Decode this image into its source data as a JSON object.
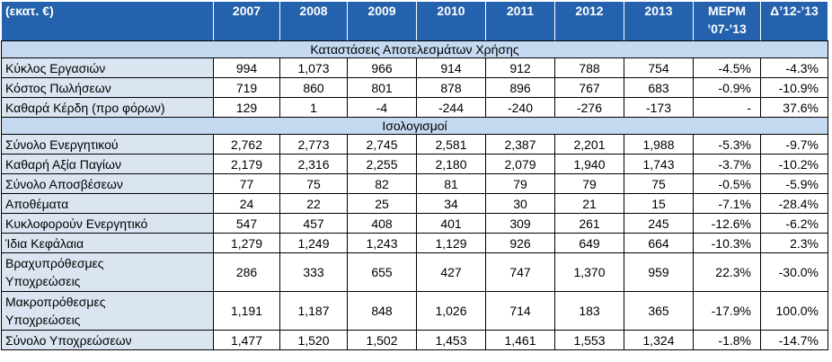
{
  "table": {
    "header": [
      "(εκατ. €)",
      "2007",
      "2008",
      "2009",
      "2010",
      "2011",
      "2012",
      "2013",
      "ΜΕΡΜ ’07-’13",
      "Δ’12-’13"
    ],
    "sections": [
      {
        "title": "Καταστάσεις Αποτελεσμάτων Χρήσης",
        "rows": [
          [
            "Κύκλος Εργασιών",
            "994",
            "1,073",
            "966",
            "914",
            "912",
            "788",
            "754",
            "-4.5%",
            "-4.3%"
          ],
          [
            "Κόστος Πωλήσεων",
            "719",
            "860",
            "801",
            "878",
            "896",
            "767",
            "683",
            "-0.9%",
            "-10.9%"
          ],
          [
            "Καθαρά Κέρδη (προ φόρων)",
            "129",
            "1",
            "-4",
            "-244",
            "-240",
            "-276",
            "-173",
            "-",
            "37.6%"
          ]
        ]
      },
      {
        "title": "Ισολογισμοί",
        "rows": [
          [
            "Σύνολο Ενεργητικού",
            "2,762",
            "2,773",
            "2,745",
            "2,581",
            "2,387",
            "2,201",
            "1,988",
            "-5.3%",
            "-9.7%"
          ],
          [
            "Καθαρή Αξία  Παγίων",
            "2,179",
            "2,316",
            "2,255",
            "2,180",
            "2,079",
            "1,940",
            "1,743",
            "-3.7%",
            "-10.2%"
          ],
          [
            "Σύνολο Αποσβέσεων",
            "77",
            "75",
            "82",
            "81",
            "79",
            "79",
            "75",
            "-0.5%",
            "-5.9%"
          ],
          [
            "Αποθέματα",
            "24",
            "22",
            "25",
            "34",
            "30",
            "21",
            "15",
            "-7.1%",
            "-28.4%"
          ],
          [
            "Κυκλοφορούν Ενεργητικό",
            "547",
            "457",
            "408",
            "401",
            "309",
            "261",
            "245",
            "-12.6%",
            "-6.2%"
          ],
          [
            "Ίδια Κεφάλαια",
            "1,279",
            "1,249",
            "1,243",
            "1,129",
            "926",
            "649",
            "664",
            "-10.3%",
            "2.3%"
          ],
          [
            "Βραχυπρόθεσμες\nΥποχρεώσεις",
            "286",
            "333",
            "655",
            "427",
            "747",
            "1,370",
            "959",
            "22.3%",
            "-30.0%"
          ],
          [
            "Μακροπρόθεσμες\nΥποχρεώσεις",
            "1,191",
            "1,187",
            "848",
            "1,026",
            "714",
            "183",
            "365",
            "-17.9%",
            "100.0%"
          ],
          [
            "Σύνολο Υποχρεώσεων",
            "1,477",
            "1,520",
            "1,502",
            "1,453",
            "1,461",
            "1,553",
            "1,324",
            "-1.8%",
            "-14.7%"
          ]
        ]
      }
    ]
  }
}
